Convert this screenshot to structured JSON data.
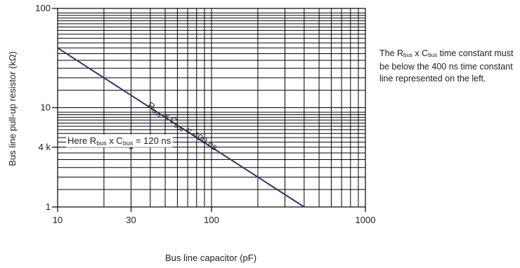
{
  "chart_data": {
    "type": "line",
    "x_scale": "log",
    "y_scale": "log",
    "xlim": [
      10,
      1000
    ],
    "ylim": [
      1,
      100
    ],
    "x_tick_values": [
      10,
      30,
      100,
      1000
    ],
    "x_tick_labels": [
      "10",
      "30",
      "100",
      "1000"
    ],
    "y_tick_values": [
      1,
      4,
      10,
      100
    ],
    "y_tick_labels": [
      "1",
      "4 k",
      "10",
      "100"
    ],
    "xlabel": "Bus line capacitor (pF)",
    "ylabel": "Bus line pull-up resistor (kΩ)",
    "grid": true,
    "series": [
      {
        "label_parts": {
          "r": "R",
          "r_sub": "bus",
          "mid": " x C",
          "c_sub": "bus",
          "end": " = 400 ns"
        },
        "x": [
          10,
          400
        ],
        "y": [
          40,
          1
        ],
        "color": "#2c3a6e"
      }
    ],
    "example_point": {
      "x": 30,
      "y": 4,
      "label_parts": {
        "prefix": "Here R",
        "r_sub": "bus",
        "mid": " x C",
        "c_sub": "bus",
        "end": " = 120 ns"
      }
    }
  },
  "note": {
    "p1": "The R",
    "sub1": "bus",
    "p2": " x C",
    "sub2": "bus",
    "p3": " time constant must be below the 400 ns time constant line represented on the left."
  },
  "colors": {
    "line": "#2c3a6e",
    "grid": "#000000",
    "dashed": "#2c3a6e",
    "text": "#222222"
  }
}
